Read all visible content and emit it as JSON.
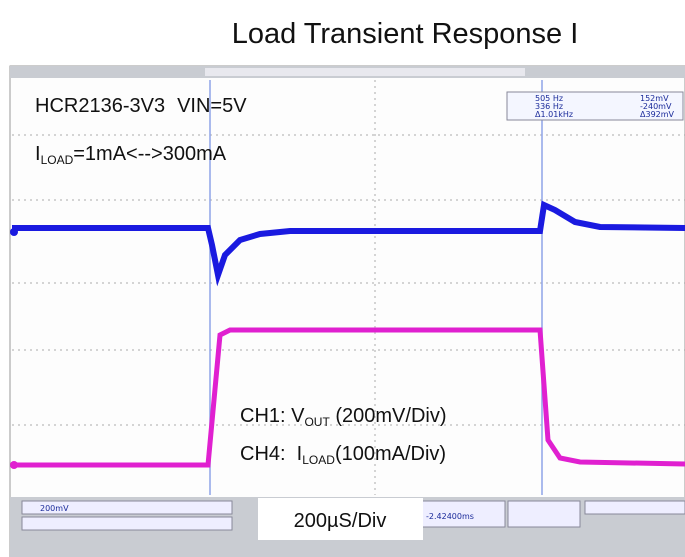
{
  "title": "Load Transient Response I",
  "annotations": {
    "device": "HCR2136-3V3",
    "vin": "VIN=5V",
    "load": {
      "prefix": "I",
      "sub": "LOAD",
      "suffix": "=1mA<-->300mA"
    },
    "ch1": {
      "prefix": "CH1: V",
      "sub": "OUT",
      "suffix": " (200mV/Div)"
    },
    "ch4": {
      "prefix": "CH4:  I",
      "sub": "LOAD",
      "suffix": "(100mA/Div)"
    },
    "timebase": "200µS/Div"
  },
  "cursor_readout": {
    "rows": [
      [
        "505 Hz",
        "152mV"
      ],
      [
        "336 Hz",
        "-240mV"
      ],
      [
        "Δ1.01kHz",
        "Δ392mV"
      ]
    ]
  },
  "status_bar": {
    "ch1_scale": "200mV",
    "delay": "-2.42400ms"
  }
}
